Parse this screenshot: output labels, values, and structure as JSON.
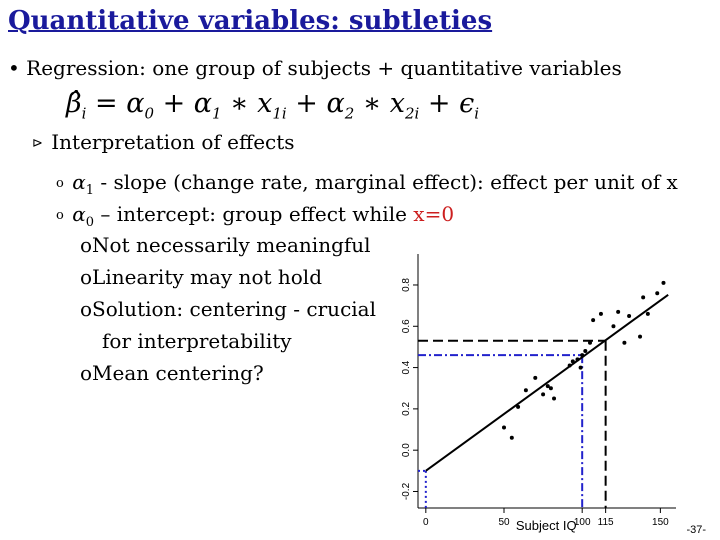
{
  "title": "Quantitative variables: subtleties",
  "bullets": {
    "regression": "Regression: one group of subjects + quantitative variables",
    "interpretation": "Interpretation of effects",
    "alpha1_text": " - slope (change rate, marginal effect): effect per unit of x",
    "alpha0_text": " – intercept: group effect while ",
    "alpha0_condition": "x=0",
    "sub_items": [
      "Not necessarily meaningful",
      "Linearity may not hold",
      "Solution: centering - crucial",
      "for interpretability",
      "Mean centering?"
    ]
  },
  "colors": {
    "title": "#1a1a9c",
    "highlight": "#cc1f1f",
    "dashed_blue": "#2222cc"
  },
  "chart_data": {
    "type": "scatter",
    "xlabel": "Subject IQ",
    "x_ticks": [
      "0",
      "50",
      "100",
      "115",
      "150"
    ],
    "y_ticks": [
      "-0.2",
      "0.0",
      "0.2",
      "0.4",
      "0.6",
      "0.8"
    ],
    "xlim": [
      -5,
      160
    ],
    "ylim": [
      -0.28,
      0.95
    ],
    "x": [
      50,
      55,
      59,
      64,
      70,
      75,
      78,
      80,
      82,
      92,
      94,
      97,
      99,
      100,
      102,
      105,
      107,
      112,
      120,
      123,
      127,
      130,
      137,
      139,
      142,
      148,
      152
    ],
    "y": [
      0.11,
      0.06,
      0.21,
      0.29,
      0.35,
      0.27,
      0.31,
      0.3,
      0.25,
      0.41,
      0.43,
      0.44,
      0.4,
      0.46,
      0.48,
      0.52,
      0.63,
      0.66,
      0.6,
      0.67,
      0.52,
      0.65,
      0.55,
      0.74,
      0.66,
      0.76,
      0.81
    ],
    "regression_line": {
      "intercept": -0.1,
      "slope": 0.0055
    },
    "reference_lines": [
      {
        "x": 100,
        "y": 0.46,
        "style": "dash-dot",
        "color": "#2222cc"
      },
      {
        "x": 115,
        "y": 0.53,
        "style": "dashed",
        "color": "#000000"
      },
      {
        "x": 0,
        "y": -0.1,
        "style": "dotted",
        "color": "#2222cc"
      }
    ]
  },
  "page_number": "-37-"
}
